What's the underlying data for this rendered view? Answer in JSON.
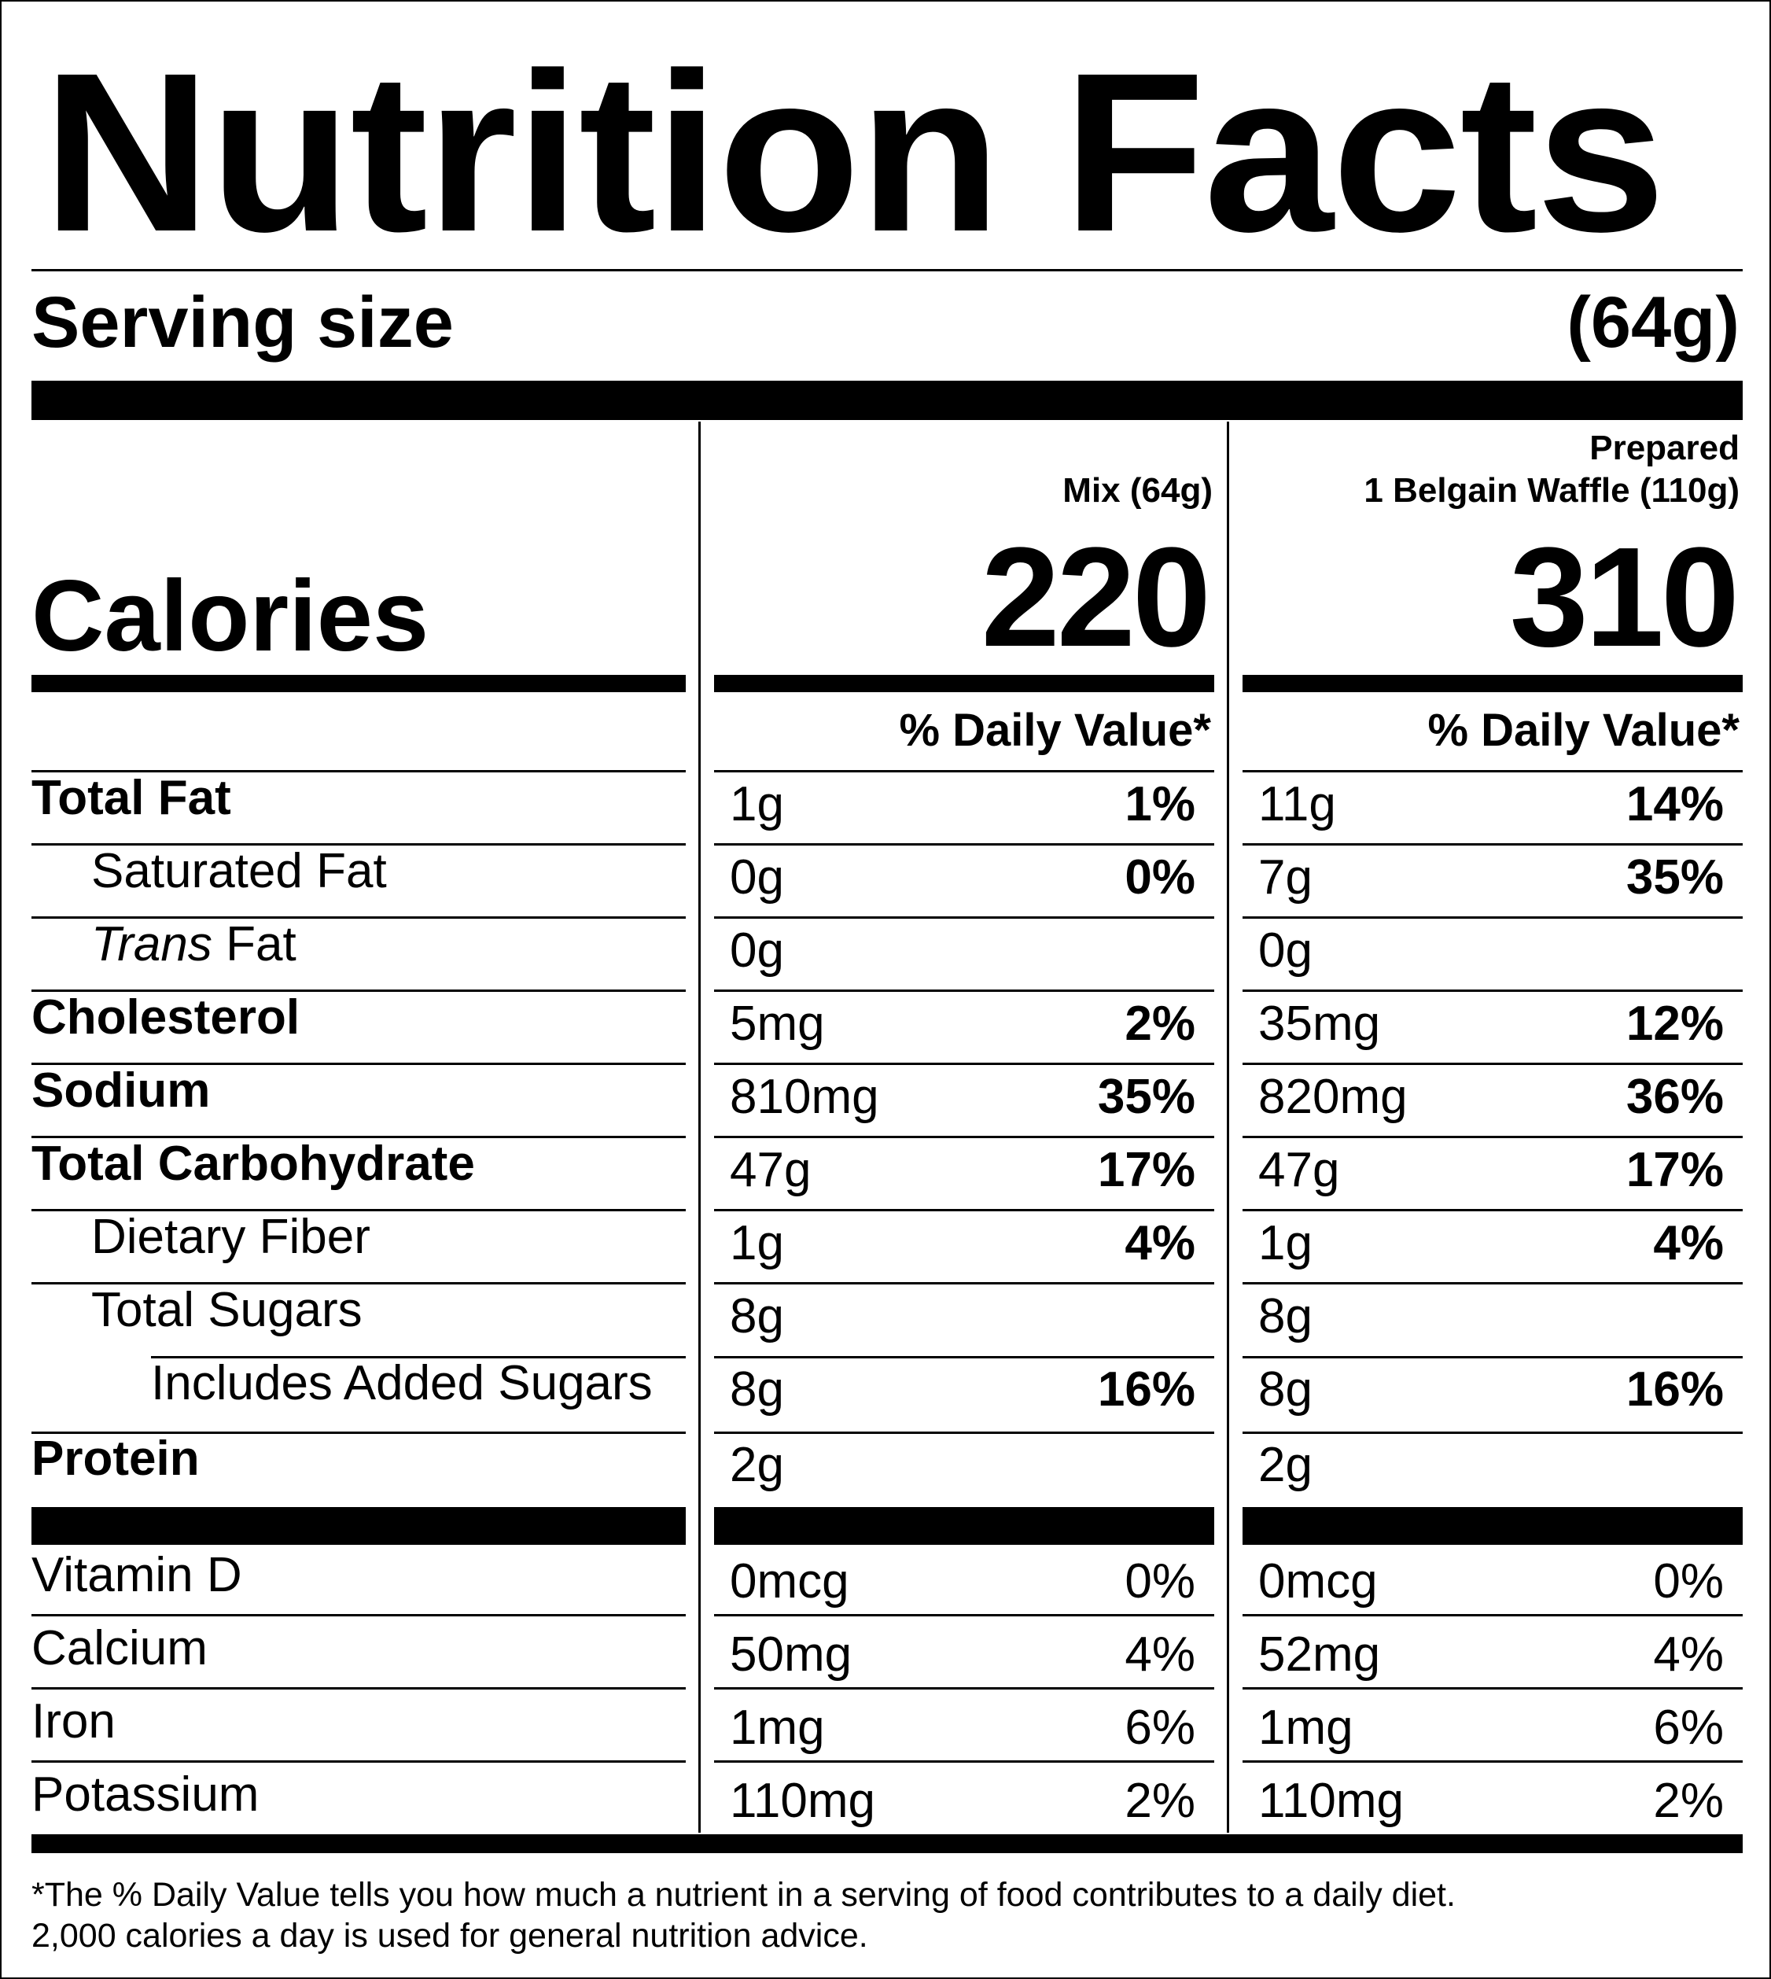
{
  "title": "Nutrition Facts",
  "serving": {
    "label": "Serving size",
    "value": "(64g)"
  },
  "calories_label": "Calories",
  "columns": [
    {
      "header_line1": "",
      "header_line2": "Mix (64g)",
      "calories": "220",
      "dv_header": "% Daily Value*"
    },
    {
      "header_line1": "Prepared",
      "header_line2": "1 Belgain Waffle (110g)",
      "calories": "310",
      "dv_header": "% Daily Value*"
    }
  ],
  "nutrients": [
    {
      "name": "Total Fat",
      "mix_amount": "1g",
      "mix_dv": "1%",
      "prep_amount": "11g",
      "prep_dv": "14%"
    },
    {
      "name": "Saturated Fat",
      "mix_amount": "0g",
      "mix_dv": "0%",
      "prep_amount": "7g",
      "prep_dv": "35%"
    },
    {
      "name_italic": "Trans",
      "name_rest": " Fat",
      "mix_amount": "0g",
      "mix_dv": "",
      "prep_amount": "0g",
      "prep_dv": ""
    },
    {
      "name": "Cholesterol",
      "mix_amount": "5mg",
      "mix_dv": "2%",
      "prep_amount": "35mg",
      "prep_dv": "12%"
    },
    {
      "name": "Sodium",
      "mix_amount": "810mg",
      "mix_dv": "35%",
      "prep_amount": "820mg",
      "prep_dv": "36%"
    },
    {
      "name": "Total Carbohydrate",
      "mix_amount": "47g",
      "mix_dv": "17%",
      "prep_amount": "47g",
      "prep_dv": "17%"
    },
    {
      "name": "Dietary Fiber",
      "mix_amount": "1g",
      "mix_dv": "4%",
      "prep_amount": "1g",
      "prep_dv": "4%"
    },
    {
      "name": "Total Sugars",
      "mix_amount": "8g",
      "mix_dv": "",
      "prep_amount": "8g",
      "prep_dv": ""
    },
    {
      "name": "Includes Added Sugars",
      "mix_amount": "8g",
      "mix_dv": "16%",
      "prep_amount": "8g",
      "prep_dv": "16%"
    },
    {
      "name": "Protein",
      "mix_amount": "2g",
      "mix_dv": "",
      "prep_amount": "2g",
      "prep_dv": ""
    }
  ],
  "vitamins": [
    {
      "name": "Vitamin D",
      "mix_amount": "0mcg",
      "mix_dv": "0%",
      "prep_amount": "0mcg",
      "prep_dv": "0%"
    },
    {
      "name": "Calcium",
      "mix_amount": "50mg",
      "mix_dv": "4%",
      "prep_amount": "52mg",
      "prep_dv": "4%"
    },
    {
      "name": "Iron",
      "mix_amount": "1mg",
      "mix_dv": "6%",
      "prep_amount": "1mg",
      "prep_dv": "6%"
    },
    {
      "name": "Potassium",
      "mix_amount": "110mg",
      "mix_dv": "2%",
      "prep_amount": "110mg",
      "prep_dv": "2%"
    }
  ],
  "footnote": {
    "line1": "*The % Daily Value tells you how much a nutrient in a serving of food contributes to a daily diet.",
    "line2": "2,000 calories a day is used for general nutrition advice."
  }
}
